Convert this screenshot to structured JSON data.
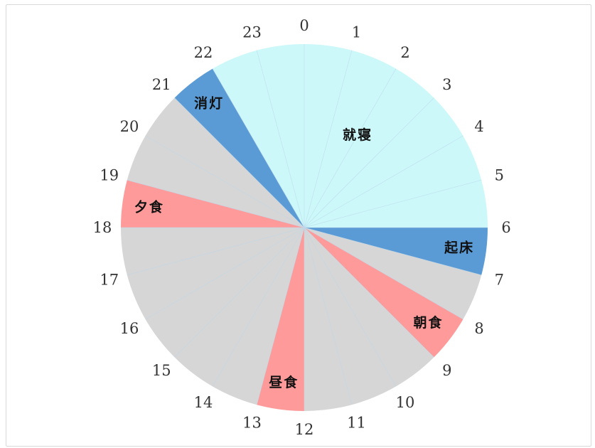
{
  "chart_data": {
    "type": "pie",
    "hours": [
      "0",
      "1",
      "2",
      "3",
      "4",
      "5",
      "6",
      "7",
      "8",
      "9",
      "10",
      "11",
      "12",
      "13",
      "14",
      "15",
      "16",
      "17",
      "18",
      "19",
      "20",
      "21",
      "22",
      "23"
    ],
    "slices": [
      {
        "label": "就寝",
        "start": 22,
        "end": 30,
        "color": "#ccf8fa"
      },
      {
        "label": "起床",
        "start": 6,
        "end": 7,
        "color": "#5b9bd5"
      },
      {
        "label": "",
        "start": 7,
        "end": 8,
        "color": "#d6d6d6"
      },
      {
        "label": "朝食",
        "start": 8,
        "end": 9,
        "color": "#fe9a9a"
      },
      {
        "label": "",
        "start": 9,
        "end": 12,
        "color": "#d6d6d6"
      },
      {
        "label": "昼食",
        "start": 12,
        "end": 13,
        "color": "#fe9a9a"
      },
      {
        "label": "",
        "start": 13,
        "end": 18,
        "color": "#d6d6d6"
      },
      {
        "label": "夕食",
        "start": 18,
        "end": 19,
        "color": "#fe9a9a"
      },
      {
        "label": "",
        "start": 19,
        "end": 21,
        "color": "#d6d6d6"
      },
      {
        "label": "消灯",
        "start": 21,
        "end": 22,
        "color": "#5b9bd5"
      }
    ]
  }
}
